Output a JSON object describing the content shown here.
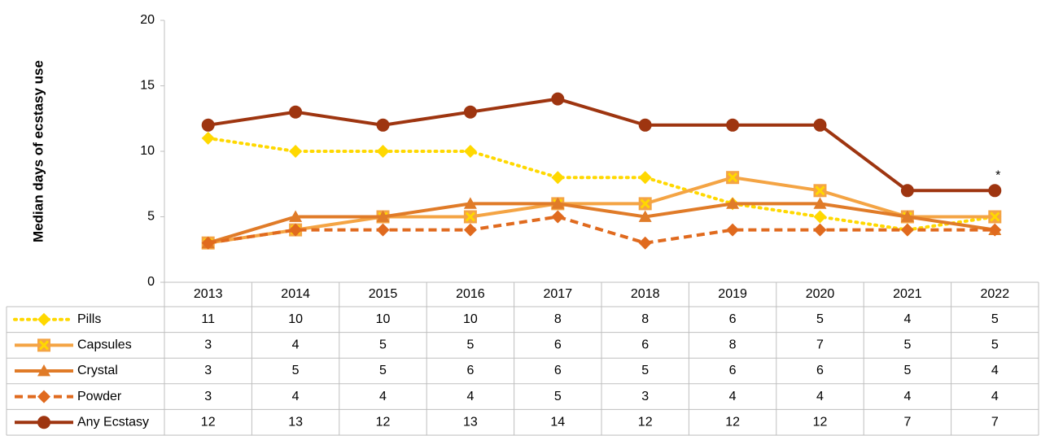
{
  "chart_data": {
    "type": "line",
    "y_label": "Median days of ecstasy use",
    "categories": [
      "2013",
      "2014",
      "2015",
      "2016",
      "2017",
      "2018",
      "2019",
      "2020",
      "2021",
      "2022"
    ],
    "ylim": [
      0,
      20
    ],
    "yticks": [
      0,
      5,
      10,
      15,
      20
    ],
    "annotation": "*",
    "series": [
      {
        "name": "Pills",
        "color": "#ffd800",
        "dash": "dotted",
        "marker": "diamond",
        "values": [
          11,
          10,
          10,
          10,
          8,
          8,
          6,
          5,
          4,
          5
        ]
      },
      {
        "name": "Capsules",
        "color": "#f4a444",
        "dash": "solid",
        "marker": "square-x",
        "values": [
          3,
          4,
          5,
          5,
          6,
          6,
          8,
          7,
          5,
          5
        ]
      },
      {
        "name": "Crystal",
        "color": "#e07b28",
        "dash": "solid",
        "marker": "triangle",
        "values": [
          3,
          5,
          5,
          6,
          6,
          5,
          6,
          6,
          5,
          4
        ]
      },
      {
        "name": "Powder",
        "color": "#e06a1e",
        "dash": "dashed",
        "marker": "diamond",
        "values": [
          3,
          4,
          4,
          4,
          5,
          3,
          4,
          4,
          4,
          4
        ]
      },
      {
        "name": "Any Ecstasy",
        "color": "#9e3510",
        "dash": "solid",
        "marker": "circle",
        "values": [
          12,
          13,
          12,
          13,
          14,
          12,
          12,
          12,
          7,
          7
        ]
      }
    ]
  }
}
